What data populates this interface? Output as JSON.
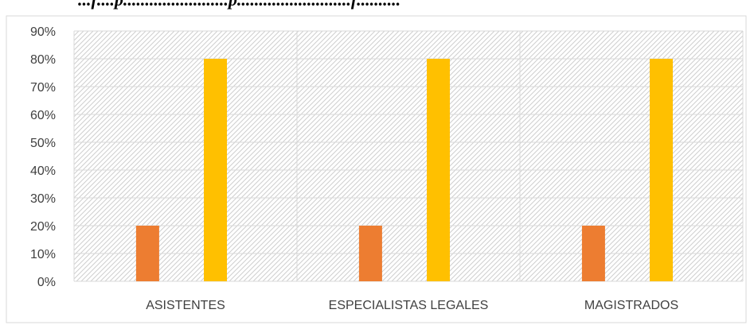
{
  "page": {
    "cut_title": "...f....p........................p..........................f.........."
  },
  "chart_data": {
    "type": "bar",
    "categories": [
      "ASISTENTES",
      "ESPECIALISTAS LEGALES",
      "MAGISTRADOS"
    ],
    "series": [
      {
        "values": [
          20,
          20,
          20
        ],
        "color": "#ED7D31"
      },
      {
        "values": [
          80,
          80,
          80
        ],
        "color": "#FFC000"
      }
    ],
    "yticks": [
      "0%",
      "10%",
      "20%",
      "30%",
      "40%",
      "50%",
      "60%",
      "70%",
      "80%",
      "90%"
    ],
    "ylim": [
      0,
      90
    ],
    "grid": true,
    "plot_background": "hatched",
    "title": "",
    "xlabel": "",
    "ylabel": ""
  }
}
